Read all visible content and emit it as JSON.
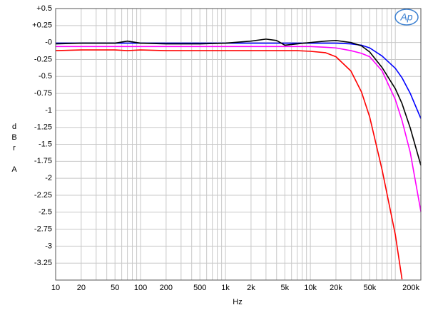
{
  "chart_data": {
    "type": "line",
    "x_label": "Hz",
    "y_label": "dBr A",
    "logo": "Ap",
    "x_scale": "log",
    "grid": true,
    "xlim": [
      10,
      200000
    ],
    "ylim": [
      -3.5,
      0.5
    ],
    "xticks": [
      10,
      20,
      50,
      100,
      200,
      500,
      {
        "value": 1000,
        "label": "1k"
      },
      {
        "value": 2000,
        "label": "2k"
      },
      {
        "value": 5000,
        "label": "5k"
      },
      {
        "value": 10000,
        "label": "10k"
      },
      {
        "value": 20000,
        "label": "20k"
      },
      {
        "value": 50000,
        "label": "50k"
      },
      {
        "value": 200000,
        "label": "200k"
      }
    ],
    "xminor_ticks": [
      30,
      40,
      60,
      70,
      80,
      90,
      300,
      400,
      600,
      700,
      800,
      900,
      3000,
      4000,
      6000,
      7000,
      8000,
      9000,
      30000,
      40000,
      60000,
      70000,
      80000,
      90000,
      100000
    ],
    "yticks": [
      {
        "value": 0.5,
        "label": "+0.5"
      },
      {
        "value": 0.25,
        "label": "+0.25"
      },
      {
        "value": 0,
        "label": "-0"
      },
      {
        "value": -0.25,
        "label": "-0.25"
      },
      {
        "value": -0.5,
        "label": "-0.5"
      },
      {
        "value": -0.75,
        "label": "-0.75"
      },
      {
        "value": -1,
        "label": "-1"
      },
      {
        "value": -1.25,
        "label": "-1.25"
      },
      {
        "value": -1.5,
        "label": "-1.5"
      },
      {
        "value": -1.75,
        "label": "-1.75"
      },
      {
        "value": -2,
        "label": "-2"
      },
      {
        "value": -2.25,
        "label": "-2.25"
      },
      {
        "value": -2.5,
        "label": "-2.5"
      },
      {
        "value": -2.75,
        "label": "-2.75"
      },
      {
        "value": -3,
        "label": "-3"
      },
      {
        "value": -3.25,
        "label": "-3.25"
      }
    ],
    "x": [
      10,
      20,
      50,
      70,
      100,
      200,
      500,
      1000,
      2000,
      3000,
      4000,
      5000,
      7000,
      10000,
      15000,
      20000,
      30000,
      40000,
      50000,
      70000,
      100000,
      120000,
      150000,
      200000
    ],
    "series": [
      {
        "name": "blue",
        "color": "#0000ff",
        "values": [
          -0.01,
          -0.01,
          -0.01,
          -0.01,
          -0.01,
          -0.01,
          -0.01,
          -0.01,
          -0.01,
          -0.01,
          -0.01,
          -0.01,
          -0.01,
          -0.01,
          -0.01,
          -0.01,
          -0.02,
          -0.04,
          -0.08,
          -0.2,
          -0.38,
          -0.52,
          -0.75,
          -1.12
        ]
      },
      {
        "name": "black",
        "color": "#000000",
        "values": [
          -0.02,
          -0.01,
          -0.01,
          0.02,
          -0.01,
          -0.02,
          -0.02,
          -0.01,
          0.02,
          0.05,
          0.03,
          -0.04,
          -0.02,
          0.0,
          0.02,
          0.03,
          0.0,
          -0.05,
          -0.14,
          -0.37,
          -0.68,
          -0.9,
          -1.26,
          -1.81
        ]
      },
      {
        "name": "magenta",
        "color": "#ff00ff",
        "values": [
          -0.06,
          -0.06,
          -0.06,
          -0.06,
          -0.06,
          -0.06,
          -0.06,
          -0.06,
          -0.06,
          -0.06,
          -0.06,
          -0.06,
          -0.06,
          -0.06,
          -0.07,
          -0.08,
          -0.12,
          -0.16,
          -0.21,
          -0.42,
          -0.84,
          -1.15,
          -1.62,
          -2.49
        ]
      },
      {
        "name": "red",
        "color": "#ff0000",
        "values": [
          -0.12,
          -0.11,
          -0.11,
          -0.12,
          -0.11,
          -0.12,
          -0.12,
          -0.12,
          -0.12,
          -0.12,
          -0.12,
          -0.12,
          -0.12,
          -0.13,
          -0.15,
          -0.21,
          -0.42,
          -0.73,
          -1.1,
          -1.88,
          -2.83,
          -3.49,
          null,
          null
        ]
      }
    ]
  }
}
